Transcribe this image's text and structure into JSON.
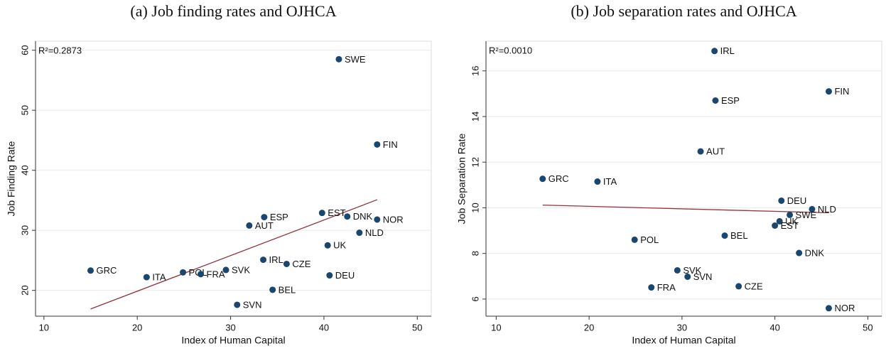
{
  "chart_data": [
    {
      "type": "scatter",
      "title": "(a) Job finding rates and OJHCA",
      "xlabel": "Index of Human Capital",
      "ylabel": "Job Finding Rate",
      "annotation": "R²=0.2873",
      "categories": [
        "SWE",
        "FIN",
        "GRC",
        "ITA",
        "POL",
        "FRA",
        "SVK",
        "SVN",
        "IRL",
        "CZE",
        "BEL",
        "DEU",
        "UK",
        "NLD",
        "NOR",
        "DNK",
        "EST",
        "ESP",
        "AUT"
      ],
      "x": [
        41.6,
        45.7,
        15.0,
        21.0,
        24.9,
        26.8,
        29.5,
        30.7,
        33.5,
        36.0,
        34.5,
        40.6,
        40.4,
        43.8,
        45.7,
        42.5,
        39.8,
        33.6,
        32.0
      ],
      "values": [
        58.5,
        44.3,
        23.3,
        22.2,
        23.0,
        22.7,
        23.4,
        17.6,
        25.1,
        24.4,
        20.1,
        22.5,
        27.5,
        29.6,
        31.8,
        32.3,
        32.9,
        32.2,
        30.8
      ],
      "color": "#1a476f",
      "fit": {
        "x": [
          15.0,
          45.7
        ],
        "values": [
          16.9,
          35.1
        ],
        "color": "#90353b"
      },
      "xlim": [
        9.1,
        51.5
      ],
      "ylim": [
        15.7,
        61.5
      ],
      "xticks": [
        10,
        20,
        30,
        40,
        50
      ],
      "yticks": [
        20,
        30,
        40,
        50,
        60
      ],
      "grid": true
    },
    {
      "type": "scatter",
      "title": "(b) Job separation rates and OJHCA",
      "xlabel": "Index of Human Capital",
      "ylabel": "Job Separation Rate",
      "annotation": "R²=0.0010",
      "categories": [
        "IRL",
        "FIN",
        "ESP",
        "AUT",
        "GRC",
        "ITA",
        "DEU",
        "NLD",
        "SWE",
        "UK",
        "EST",
        "BEL",
        "POL",
        "DNK",
        "SVK",
        "SVN",
        "CZE",
        "FRA",
        "NOR"
      ],
      "x": [
        33.5,
        45.8,
        33.6,
        32.0,
        15.0,
        20.9,
        40.7,
        44.0,
        41.6,
        40.5,
        40.0,
        34.6,
        24.9,
        42.6,
        29.5,
        30.6,
        36.1,
        26.7,
        45.8
      ],
      "values": [
        16.87,
        15.1,
        14.7,
        12.47,
        11.27,
        11.15,
        10.31,
        9.94,
        9.69,
        9.41,
        9.22,
        8.78,
        8.6,
        8.02,
        7.26,
        6.98,
        6.56,
        6.51,
        5.6
      ],
      "color": "#1a476f",
      "fit": {
        "x": [
          15.0,
          45.8
        ],
        "values": [
          10.12,
          9.78
        ],
        "color": "#90353b"
      },
      "xlim": [
        8.9,
        51.5
      ],
      "ylim": [
        5.25,
        17.3
      ],
      "xticks": [
        10,
        20,
        30,
        40,
        50
      ],
      "yticks": [
        6,
        8,
        10,
        12,
        14,
        16
      ],
      "grid": true
    }
  ]
}
